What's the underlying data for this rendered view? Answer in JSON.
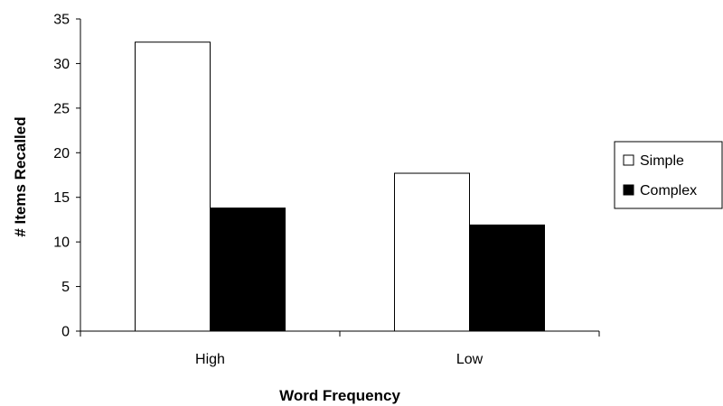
{
  "chart_data": {
    "type": "bar",
    "title": "",
    "xlabel": "Word Frequency",
    "ylabel": "# Items Recalled",
    "categories": [
      "High",
      "Low"
    ],
    "series": [
      {
        "name": "Simple",
        "values": [
          32.4,
          17.7
        ],
        "color": "#ffffff"
      },
      {
        "name": "Complex",
        "values": [
          13.8,
          11.9
        ],
        "color": "#000000"
      }
    ],
    "ylim": [
      0,
      35
    ],
    "yticks": [
      0,
      5,
      10,
      15,
      20,
      25,
      30,
      35
    ],
    "grid": false,
    "legend_position": "right"
  }
}
